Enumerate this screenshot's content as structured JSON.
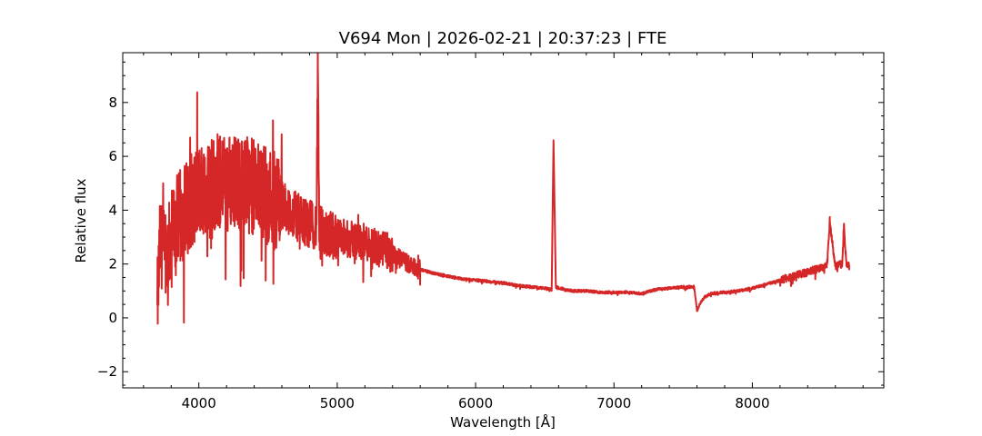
{
  "chart_data": {
    "type": "line",
    "title": "V694 Mon | 2026-02-21 | 20:37:23 | FTE",
    "xlabel": "Wavelength [Å]",
    "ylabel": "Relative flux",
    "xlim": [
      3450,
      8950
    ],
    "ylim": [
      -2.6,
      9.85
    ],
    "x_ticks": [
      4000,
      5000,
      6000,
      7000,
      8000
    ],
    "x_tick_labels": [
      "4000",
      "5000",
      "6000",
      "7000",
      "8000"
    ],
    "y_ticks": [
      -2,
      0,
      2,
      4,
      6,
      8
    ],
    "y_tick_labels": [
      "−2",
      "0",
      "2",
      "4",
      "6",
      "8"
    ],
    "x_minor_step": 200,
    "y_minor_step": 0.5,
    "grid": false,
    "legend": "none",
    "series": [
      {
        "color": "#d62728",
        "x": [
          3700,
          3710,
          3720,
          3740,
          3760,
          3780,
          3800,
          3850,
          3900,
          3950,
          4000,
          4050,
          4100,
          4150,
          4200,
          4250,
          4300,
          4350,
          4400,
          4450,
          4500,
          4550,
          4600,
          4650,
          4700,
          4750,
          4800,
          4850,
          4860,
          4870,
          4900,
          4950,
          5000,
          5050,
          5100,
          5150,
          5200,
          5250,
          5300,
          5350,
          5400,
          5450,
          5500,
          5550,
          5600,
          5700,
          5800,
          5900,
          6000,
          6100,
          6200,
          6300,
          6400,
          6500,
          6550,
          6563,
          6580,
          6650,
          6700,
          6800,
          6900,
          7000,
          7100,
          7200,
          7300,
          7400,
          7500,
          7580,
          7600,
          7620,
          7650,
          7700,
          7800,
          7900,
          8000,
          8100,
          8200,
          8300,
          8400,
          8500,
          8540,
          8560,
          8600,
          8650,
          8662,
          8680,
          8700
        ],
        "y": [
          0.5,
          1.6,
          2.9,
          2.5,
          2.2,
          2.6,
          3.1,
          3.6,
          4.0,
          4.4,
          4.7,
          4.9,
          5.0,
          5.05,
          5.1,
          5.1,
          5.0,
          4.95,
          4.85,
          4.8,
          4.65,
          4.4,
          4.2,
          4.0,
          3.8,
          3.6,
          3.5,
          3.45,
          9.3,
          3.3,
          3.2,
          3.1,
          3.0,
          2.95,
          2.9,
          2.85,
          2.8,
          2.75,
          2.6,
          2.5,
          2.35,
          2.2,
          2.05,
          1.9,
          1.8,
          1.65,
          1.55,
          1.45,
          1.4,
          1.35,
          1.3,
          1.2,
          1.15,
          1.1,
          1.05,
          6.6,
          1.15,
          1.05,
          1.0,
          1.0,
          0.95,
          0.95,
          0.95,
          0.9,
          1.05,
          1.1,
          1.15,
          1.15,
          0.25,
          0.5,
          0.75,
          0.9,
          0.95,
          1.0,
          1.1,
          1.25,
          1.4,
          1.55,
          1.7,
          1.85,
          2.0,
          3.6,
          1.9,
          2.0,
          3.5,
          1.95,
          1.95
        ]
      }
    ]
  }
}
